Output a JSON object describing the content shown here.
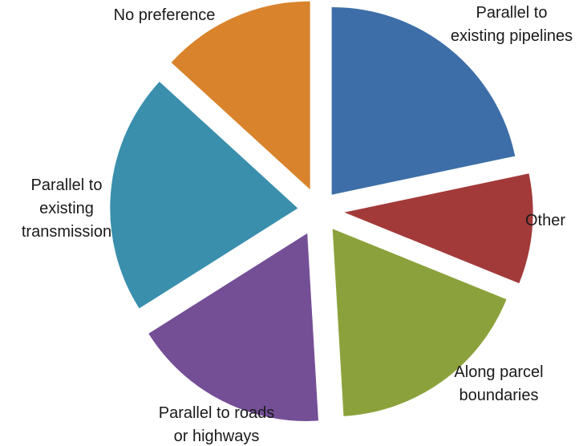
{
  "chart_data": {
    "type": "pie",
    "title": "",
    "slices": [
      {
        "label": [
          "Parallel to",
          "existing pipelines"
        ],
        "value": 23,
        "color": "#3d6ea8"
      },
      {
        "label": [
          "Other"
        ],
        "value": 10,
        "color": "#a33a3a"
      },
      {
        "label": [
          "Along parcel",
          "boundaries"
        ],
        "value": 19,
        "color": "#8ba23c"
      },
      {
        "label": [
          "Parallel to roads",
          "or highways"
        ],
        "value": 18,
        "color": "#744f96"
      },
      {
        "label": [
          "Parallel to",
          "existing",
          "transmission"
        ],
        "value": 22,
        "color": "#3a8fad"
      },
      {
        "label": [
          "No preference"
        ],
        "value": 14,
        "color": "#d9832c"
      }
    ]
  }
}
